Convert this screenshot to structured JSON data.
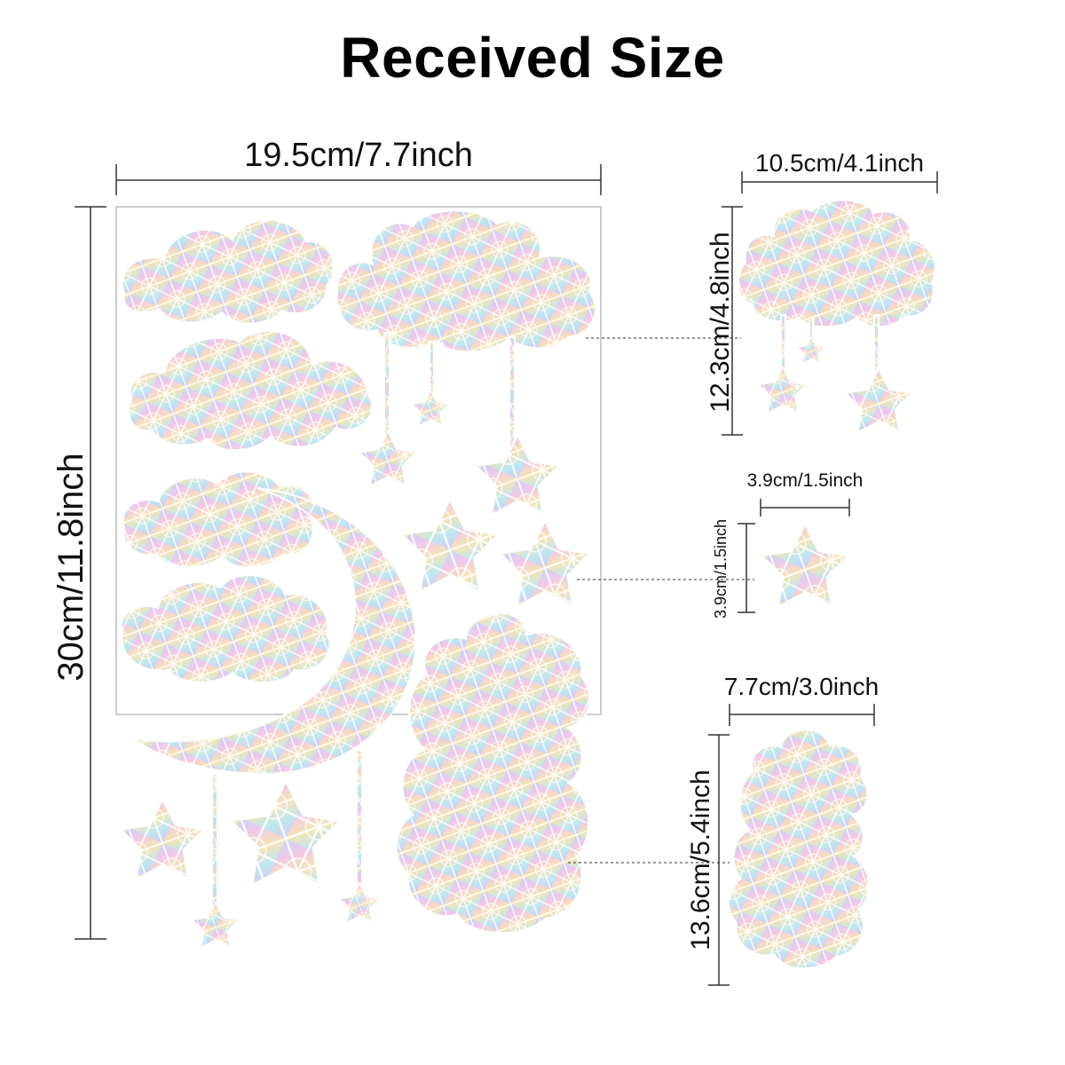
{
  "title": "Received Size",
  "sheet": {
    "width_label": "19.5cm/7.7inch",
    "height_label": "30cm/11.8inch"
  },
  "cloud_mobile": {
    "width_label": "10.5cm/4.1inch",
    "height_label": "12.3cm/4.8inch"
  },
  "star": {
    "width_label": "3.9cm/1.5inch",
    "height_label": "3.9cm/1.5inch"
  },
  "tall_cloud": {
    "width_label": "7.7cm/3.0inch",
    "height_label": "13.6cm/5.4inch"
  },
  "colors": {
    "text": "#111111",
    "line": "#333333",
    "sheet_border": "#bdbdbd",
    "holo_a": "#c9d6f2",
    "holo_b": "#e8c6e6",
    "holo_c": "#f3e0b8",
    "holo_d": "#bfe6ee"
  }
}
